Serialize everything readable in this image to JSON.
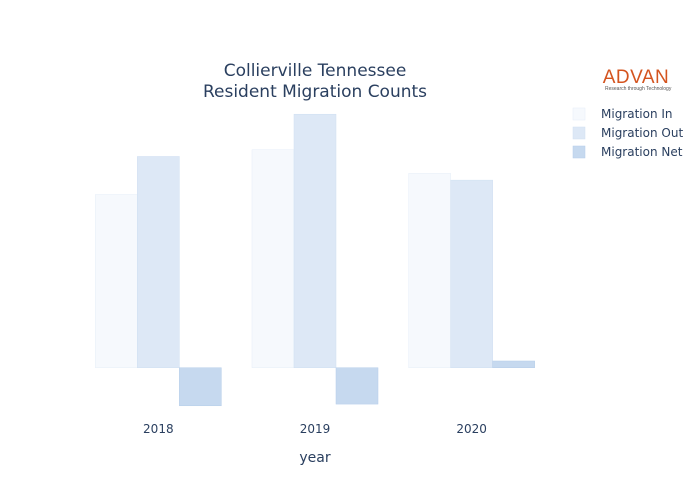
{
  "logo": {
    "name": "ADVAN",
    "tagline": "Research through Technology"
  },
  "colors": {
    "migration_in": "#f6f9fd",
    "migration_out": "#dde8f6",
    "migration_net": "#c6d9ef",
    "text": "#2a3f5f"
  },
  "chart_data": {
    "type": "bar",
    "title": "Collierville Tennessee",
    "subtitle": "Resident Migration Counts",
    "xlabel": "year",
    "ylabel": "",
    "categories": [
      "2018",
      "2019",
      "2020"
    ],
    "series": [
      {
        "name": "Migration In",
        "values": [
          2050,
          2580,
          2300
        ]
      },
      {
        "name": "Migration Out",
        "values": [
          2500,
          3000,
          2220
        ]
      },
      {
        "name": "Migration Net",
        "values": [
          -450,
          -430,
          80
        ]
      }
    ],
    "ylim": [
      -500,
      3050
    ],
    "grid": false,
    "legend_position": "top-right"
  }
}
